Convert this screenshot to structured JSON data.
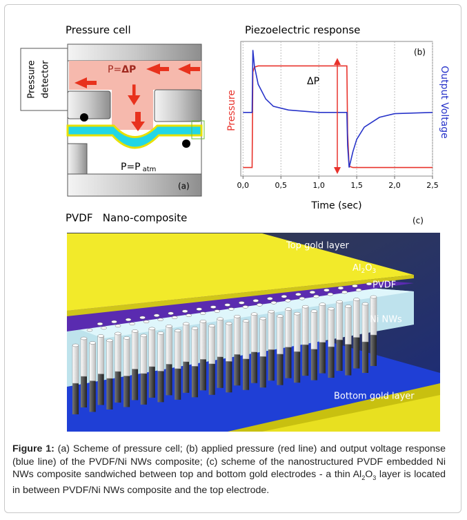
{
  "panel_a": {
    "title": "Pressure cell",
    "detector": [
      "Pressure",
      "detector"
    ],
    "inlet": "P=",
    "inlet_delta": "ΔP",
    "outlet": "P=P",
    "outlet_sub": "atm",
    "label": "(a)"
  },
  "chart_data": {
    "type": "line",
    "title": "Piezoelectric response",
    "panel_label": "(b)",
    "annotation": "ΔP",
    "xlabel": "Time (sec)",
    "ylabel": "Pressure",
    "y2label": "Output Voltage",
    "x": [
      0,
      0.12,
      0.13,
      0.15,
      0.2,
      0.3,
      0.4,
      0.6,
      0.8,
      1.0,
      1.2,
      1.37,
      1.38,
      1.4,
      1.45,
      1.5,
      1.6,
      1.8,
      2.0,
      2.5
    ],
    "xlim": [
      -0.03,
      2.5
    ],
    "ylim": [
      -0.05,
      1.05
    ],
    "xticks": [
      {
        "value": 0,
        "label": "0,0"
      },
      {
        "value": 0.5,
        "label": "0,5"
      },
      {
        "value": 1,
        "label": "1,0"
      },
      {
        "value": 1.5,
        "label": "1,5"
      },
      {
        "value": 2,
        "label": "2,0"
      },
      {
        "value": 2.5,
        "label": "2,5"
      }
    ],
    "grid": true,
    "series": [
      {
        "color": "#e8322b",
        "values": [
          0.02,
          0.02,
          0.8,
          0.84,
          0.85,
          0.85,
          0.85,
          0.85,
          0.85,
          0.85,
          0.85,
          0.85,
          0.3,
          0.03,
          0.02,
          0.02,
          0.02,
          0.02,
          0.02,
          0.02
        ]
      },
      {
        "color": "#2733c9",
        "values": [
          0.47,
          0.47,
          0.98,
          0.85,
          0.7,
          0.58,
          0.52,
          0.49,
          0.48,
          0.47,
          0.47,
          0.47,
          0.2,
          0.02,
          0.15,
          0.25,
          0.35,
          0.43,
          0.46,
          0.47
        ]
      }
    ]
  },
  "panel_c": {
    "title": "PVDF   Nano-composite",
    "label": "(c)",
    "top_gold": "Top gold layer",
    "al2o3": [
      "Al",
      "2",
      "O",
      "3"
    ],
    "pvdf": "PVDF",
    "ni_nws": "Ni NWs",
    "bottom_gold": "Bottom gold layer"
  },
  "caption": {
    "label": "Figure 1:",
    "text": [
      " (a) Scheme of pressure cell; (b) applied pressure (red line) and output voltage response (blue line) of the PVDF/Ni NWs composite; (c) scheme of the nanostructured PVDF embedded Ni NWs composite sandwiched between top and bottom gold electrodes - a thin Al",
      "2",
      "O",
      "3",
      " layer is located in between PVDF/Ni NWs composite and the top electrode."
    ]
  }
}
